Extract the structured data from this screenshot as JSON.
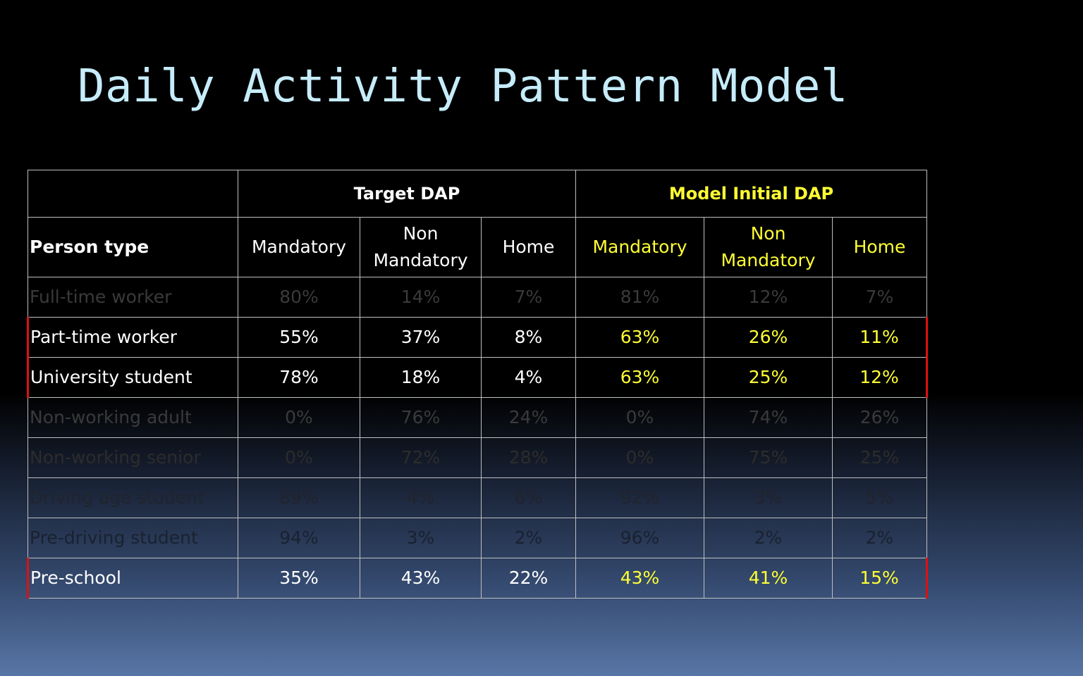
{
  "title": "Daily Activity Pattern Model",
  "table": {
    "groups": [
      "Target DAP",
      "Model Initial DAP"
    ],
    "person_type_header": "Person type",
    "columns": [
      "Mandatory",
      "Non Mandatory",
      "Home",
      "Mandatory",
      "Non Mandatory",
      "Home"
    ],
    "rows": [
      {
        "label": "Full-time worker",
        "values": [
          "80%",
          "14%",
          "7%",
          "81%",
          "12%",
          "7%"
        ],
        "highlighted": false
      },
      {
        "label": "Part-time worker",
        "values": [
          "55%",
          "37%",
          "8%",
          "63%",
          "26%",
          "11%"
        ],
        "highlighted": true
      },
      {
        "label": "University student",
        "values": [
          "78%",
          "18%",
          "4%",
          "63%",
          "25%",
          "12%"
        ],
        "highlighted": true
      },
      {
        "label": "Non-working adult",
        "values": [
          "0%",
          "76%",
          "24%",
          "0%",
          "74%",
          "26%"
        ],
        "highlighted": false
      },
      {
        "label": "Non-working senior",
        "values": [
          "0%",
          "72%",
          "28%",
          "0%",
          "75%",
          "25%"
        ],
        "highlighted": false
      },
      {
        "label": "Driving age student",
        "values": [
          "89%",
          "4%",
          "6%",
          "92%",
          "3%",
          "5%"
        ],
        "highlighted": false
      },
      {
        "label": "Pre-driving student",
        "values": [
          "94%",
          "3%",
          "2%",
          "96%",
          "2%",
          "2%"
        ],
        "highlighted": false
      },
      {
        "label": "Pre-school",
        "values": [
          "35%",
          "43%",
          "22%",
          "43%",
          "41%",
          "15%"
        ],
        "highlighted": true
      }
    ]
  },
  "colors": {
    "title": "#c6ecfa",
    "target_text": "#ffffff",
    "model_text": "#ffff33",
    "highlight_border": "#dd1111"
  }
}
